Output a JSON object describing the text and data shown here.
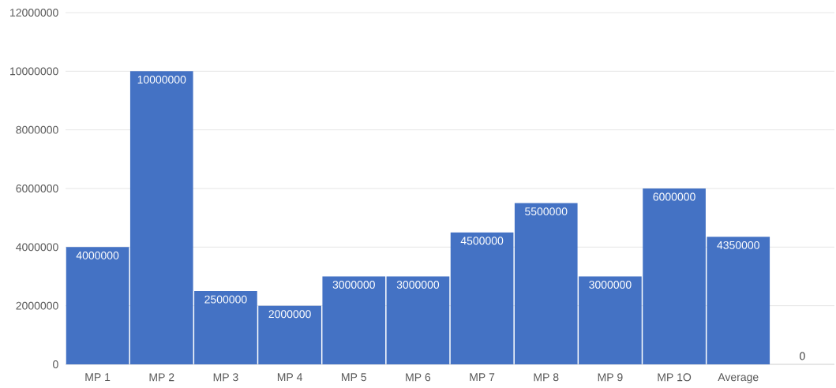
{
  "chart_data": {
    "type": "bar",
    "categories": [
      "MP 1",
      "MP 2",
      "MP 3",
      "MP 4",
      "MP 5",
      "MP 6",
      "MP 7",
      "MP 8",
      "MP 9",
      "MP 1O",
      "Average",
      null
    ],
    "values": [
      4000000,
      10000000,
      2500000,
      2000000,
      3000000,
      3000000,
      4500000,
      5500000,
      3000000,
      6000000,
      4350000,
      0
    ],
    "color": "#4472c4",
    "ylim": [
      0,
      12000000
    ],
    "yticks": [
      0,
      2000000,
      4000000,
      6000000,
      8000000,
      10000000,
      12000000
    ],
    "grid": "y",
    "data_labels": true
  }
}
